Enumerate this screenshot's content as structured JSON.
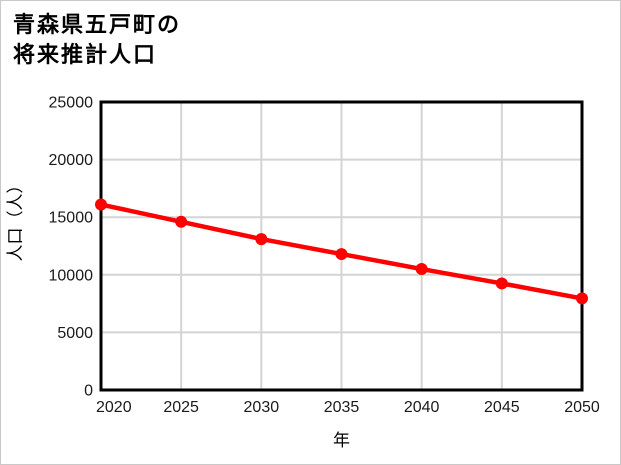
{
  "chart_data": {
    "type": "line",
    "title": "青森県五戸町の将来推計人口",
    "title_lines": [
      "青森県五戸町の",
      "将来推計人口"
    ],
    "xlabel": "年",
    "ylabel": "人口（人）",
    "x": [
      2020,
      2025,
      2030,
      2035,
      2040,
      2045,
      2050
    ],
    "series": [
      {
        "name": "将来推計人口",
        "values": [
          16100,
          14600,
          13100,
          11800,
          10500,
          9250,
          7950
        ]
      }
    ],
    "xlim": [
      2020,
      2050
    ],
    "ylim": [
      0,
      25000
    ],
    "xticks": [
      2020,
      2025,
      2030,
      2035,
      2040,
      2045,
      2050
    ],
    "yticks": [
      0,
      5000,
      10000,
      15000,
      20000,
      25000
    ],
    "grid": true,
    "legend": false,
    "marker": "circle",
    "line_color": "#ff0000",
    "grid_color": "#d4d4d4",
    "plot_border_color": "#000000",
    "tick_label_color": "#1a1a1a",
    "background_color": "#ffffff"
  }
}
